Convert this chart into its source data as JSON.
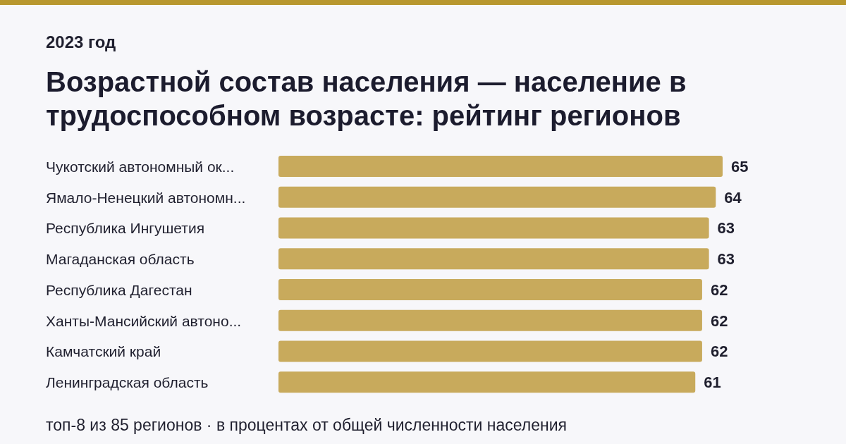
{
  "chart_data": {
    "type": "bar",
    "orientation": "horizontal",
    "subtitle": "2023 год",
    "title": "Возрастной состав населения — население в трудоспособном возрасте: рейтинг регионов",
    "categories": [
      "Чукотский автономный ок...",
      "Ямало-Ненецкий автономн...",
      "Республика Ингушетия",
      "Магаданская область",
      "Республика Дагестан",
      "Ханты-Мансийский автоно...",
      "Камчатский край",
      "Ленинградская область"
    ],
    "values": [
      65,
      64,
      63,
      63,
      62,
      62,
      62,
      61
    ],
    "color": "#c8aa5c",
    "data_labels": true,
    "grid": false,
    "legend": false,
    "annotations": [
      "топ-8 из 85 регионов · в процентах от общей численности населения"
    ]
  }
}
